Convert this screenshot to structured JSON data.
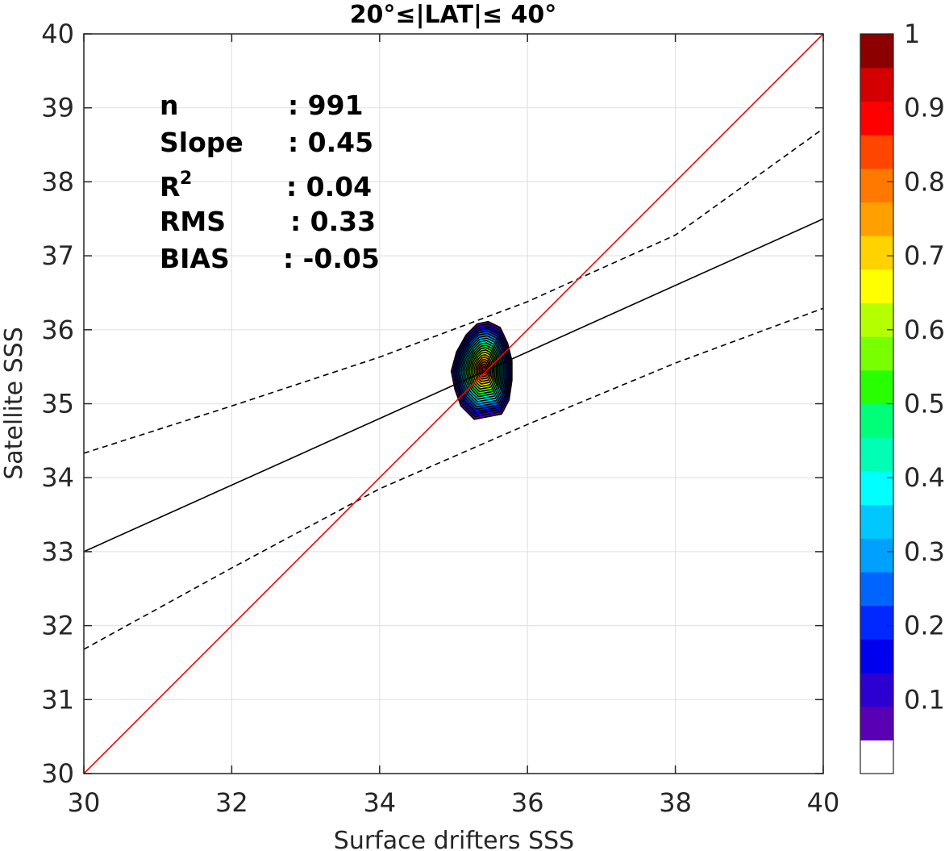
{
  "chart_data": {
    "type": "contour",
    "title": "20°≤|LAT|≤ 40°",
    "xlabel": "Surface drifters SSS",
    "ylabel": "Satellite SSS",
    "xlim": [
      30,
      40
    ],
    "ylim": [
      30,
      40
    ],
    "xticks": [
      30,
      32,
      34,
      36,
      38,
      40
    ],
    "yticks": [
      30,
      31,
      32,
      33,
      34,
      35,
      36,
      37,
      38,
      39,
      40
    ],
    "grid": true,
    "stats": [
      {
        "label": "n",
        "sup": "",
        "sep": ":",
        "value": "991"
      },
      {
        "label": "Slope",
        "sup": "",
        "sep": ":",
        "value": "0.45"
      },
      {
        "label": "R",
        "sup": "2",
        "sep": ":",
        "value": "0.04"
      },
      {
        "label": "RMS",
        "sup": "",
        "sep": ":",
        "value": "0.33"
      },
      {
        "label": "BIAS",
        "sup": "",
        "sep": ":",
        "value": "-0.05"
      }
    ],
    "lines": {
      "one_to_one": {
        "x": [
          30,
          40
        ],
        "y": [
          30,
          40
        ],
        "color": "#ff0000",
        "style": "solid"
      },
      "regression": {
        "x": [
          30,
          40
        ],
        "y": [
          33.0,
          37.5
        ],
        "color": "#000000",
        "style": "solid"
      },
      "upper_bound": {
        "x": [
          30,
          32,
          34,
          36,
          38,
          40
        ],
        "y": [
          34.33,
          34.97,
          35.63,
          36.38,
          37.28,
          38.72
        ],
        "color": "#000000",
        "style": "dashed"
      },
      "lower_bound": {
        "x": [
          30,
          32,
          34,
          36,
          38,
          40
        ],
        "y": [
          31.68,
          32.78,
          33.85,
          34.72,
          35.55,
          36.29
        ],
        "color": "#000000",
        "style": "dashed"
      }
    },
    "density": {
      "center": [
        35.41,
        35.47
      ],
      "outer_contour": [
        [
          35.28,
          34.79
        ],
        [
          35.65,
          34.86
        ],
        [
          35.75,
          35.05
        ],
        [
          35.79,
          35.32
        ],
        [
          35.79,
          35.58
        ],
        [
          35.73,
          35.82
        ],
        [
          35.63,
          36.03
        ],
        [
          35.47,
          36.11
        ],
        [
          35.32,
          36.08
        ],
        [
          35.17,
          35.93
        ],
        [
          35.04,
          35.7
        ],
        [
          34.97,
          35.44
        ],
        [
          35.02,
          35.19
        ],
        [
          35.1,
          34.97
        ]
      ],
      "levels": 20
    },
    "colorbar": {
      "colors": [
        "#ffffff",
        "#5a00b4",
        "#2d00d2",
        "#0000ee",
        "#0028ff",
        "#0064ff",
        "#00a0ff",
        "#00c8ff",
        "#00ffff",
        "#00ffb4",
        "#00ff78",
        "#28ff00",
        "#78ff00",
        "#b4ff00",
        "#ffff00",
        "#ffd200",
        "#ffa000",
        "#ff7800",
        "#ff4600",
        "#ff0000",
        "#d20000",
        "#8c0000"
      ],
      "ticks": [
        {
          "value": 0.1,
          "label": "0.1"
        },
        {
          "value": 0.2,
          "label": "0.2"
        },
        {
          "value": 0.3,
          "label": "0.3"
        },
        {
          "value": 0.4,
          "label": "0.4"
        },
        {
          "value": 0.5,
          "label": "0.5"
        },
        {
          "value": 0.6,
          "label": "0.6"
        },
        {
          "value": 0.7,
          "label": "0.7"
        },
        {
          "value": 0.8,
          "label": "0.8"
        },
        {
          "value": 0.9,
          "label": "0.9"
        },
        {
          "value": 1.0,
          "label": "1"
        }
      ]
    }
  }
}
